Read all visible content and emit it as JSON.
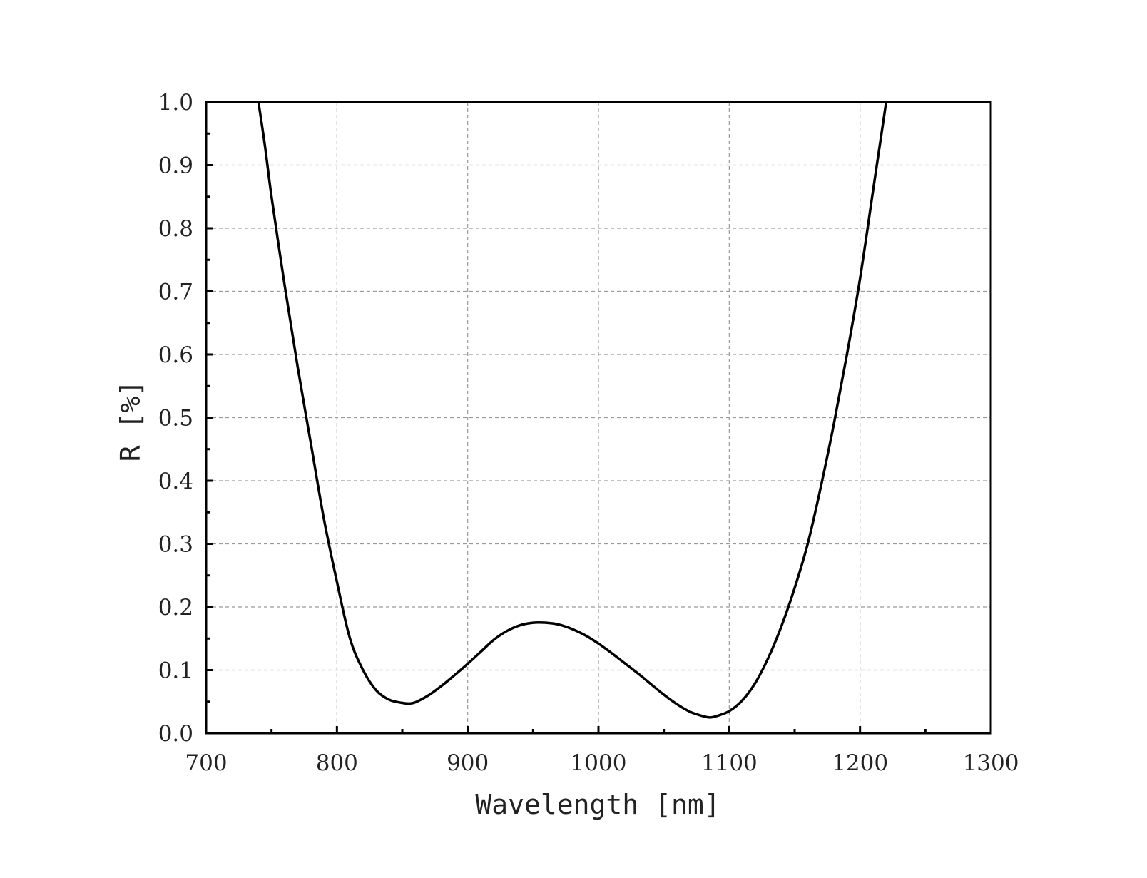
{
  "chart_data": {
    "type": "line",
    "title": "",
    "xlabel": "Wavelength [nm]",
    "ylabel": "R [%]",
    "xlim": [
      700,
      1300
    ],
    "ylim": [
      0.0,
      1.0
    ],
    "x_ticks": [
      700,
      800,
      900,
      1000,
      1100,
      1200,
      1300
    ],
    "x_tick_labels": [
      "700",
      "800",
      "900",
      "1000",
      "1100",
      "1200",
      "1300"
    ],
    "y_ticks": [
      0.0,
      0.1,
      0.2,
      0.3,
      0.4,
      0.5,
      0.6,
      0.7,
      0.8,
      0.9,
      1.0
    ],
    "y_tick_labels": [
      "0.0",
      "0.1",
      "0.2",
      "0.3",
      "0.4",
      "0.5",
      "0.6",
      "0.7",
      "0.8",
      "0.9",
      "1.0"
    ],
    "grid": true,
    "legend": "none",
    "line_color": "#000000",
    "series": [
      {
        "x": [
          740,
          745,
          750,
          760,
          770,
          780,
          790,
          800,
          810,
          820,
          830,
          840,
          850,
          855,
          860,
          870,
          880,
          890,
          900,
          910,
          920,
          930,
          940,
          950,
          960,
          970,
          980,
          990,
          1000,
          1010,
          1020,
          1030,
          1040,
          1050,
          1060,
          1070,
          1080,
          1085,
          1090,
          1100,
          1110,
          1120,
          1130,
          1140,
          1150,
          1160,
          1170,
          1180,
          1190,
          1200,
          1210,
          1220
        ],
        "y": [
          1.0,
          0.93,
          0.85,
          0.71,
          0.58,
          0.46,
          0.34,
          0.24,
          0.15,
          0.1,
          0.068,
          0.053,
          0.048,
          0.047,
          0.049,
          0.06,
          0.075,
          0.092,
          0.11,
          0.129,
          0.148,
          0.162,
          0.171,
          0.175,
          0.175,
          0.172,
          0.165,
          0.155,
          0.142,
          0.127,
          0.111,
          0.095,
          0.078,
          0.061,
          0.046,
          0.034,
          0.027,
          0.025,
          0.027,
          0.035,
          0.052,
          0.08,
          0.12,
          0.17,
          0.23,
          0.3,
          0.39,
          0.49,
          0.6,
          0.72,
          0.86,
          1.0
        ]
      }
    ]
  }
}
